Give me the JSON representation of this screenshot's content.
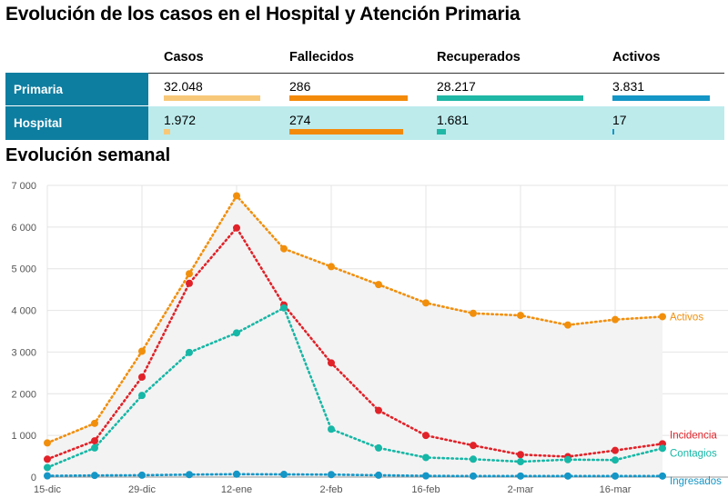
{
  "title": "Evolución de los casos en el Hospital y Atención Primaria",
  "table": {
    "headers": [
      "Casos",
      "Fallecidos",
      "Recuperados",
      "Activos"
    ],
    "rows": [
      {
        "label": "Primaria",
        "values": [
          "32.048",
          "286",
          "28.217",
          "3.831"
        ],
        "fills": [
          1.0,
          1.0,
          1.0,
          1.0
        ]
      },
      {
        "label": "Hospital",
        "values": [
          "1.972",
          "274",
          "1.681",
          "17"
        ],
        "fills": [
          0.062,
          0.958,
          0.06,
          0.02
        ]
      }
    ],
    "bar_colors": [
      "#f8c879",
      "#f48a0a",
      "#1fb7a5",
      "#1496c6"
    ]
  },
  "chart_title": "Evolución semanal",
  "chart_data": {
    "type": "line",
    "x_tick_labels": [
      "15-dic",
      "29-dic",
      "12-ene",
      "2-feb",
      "16-feb",
      "2-mar",
      "16-mar"
    ],
    "x_tick_index": [
      0,
      2,
      4,
      6,
      8,
      10,
      12
    ],
    "y_ticks": [
      0,
      1000,
      2000,
      3000,
      4000,
      5000,
      6000,
      7000
    ],
    "y_tick_labels": [
      "0",
      "1 000",
      "2 000",
      "3 000",
      "4 000",
      "5 000",
      "6 000",
      "7 000"
    ],
    "ylim": [
      0,
      7000
    ],
    "n_points": 14,
    "grid": true,
    "series": [
      {
        "name": "Activos",
        "color": "#f18f0c",
        "values": [
          820,
          1290,
          3020,
          4880,
          6750,
          5480,
          5050,
          4620,
          4180,
          3930,
          3880,
          3650,
          3780,
          3850
        ]
      },
      {
        "name": "Incidencia",
        "color": "#e12229",
        "values": [
          430,
          870,
          2400,
          4650,
          5980,
          4130,
          2740,
          1600,
          1000,
          760,
          540,
          490,
          640,
          800
        ]
      },
      {
        "name": "Contagios",
        "color": "#16b7a6",
        "values": [
          230,
          700,
          1960,
          2990,
          3460,
          4060,
          1150,
          700,
          470,
          430,
          370,
          420,
          410,
          690
        ]
      },
      {
        "name": "Ingresados",
        "color": "#1496c6",
        "values": [
          30,
          40,
          45,
          60,
          70,
          65,
          60,
          45,
          30,
          25,
          25,
          25,
          25,
          25
        ]
      }
    ]
  }
}
